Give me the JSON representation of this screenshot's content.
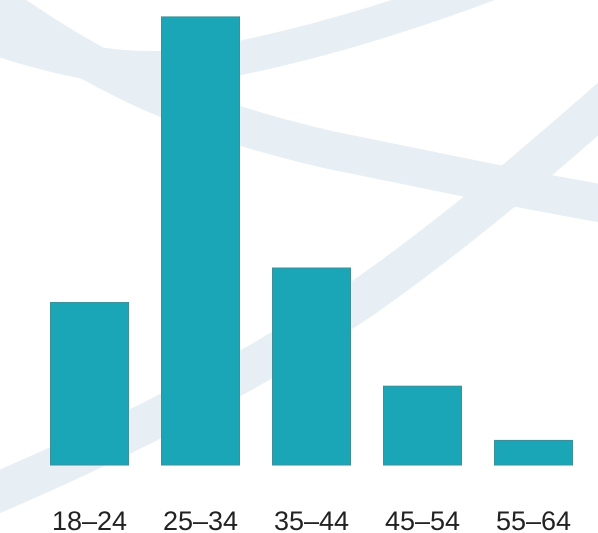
{
  "chart_data": {
    "type": "bar",
    "title": "",
    "xlabel": "",
    "ylabel": "",
    "categories": [
      "18–24",
      "25–34",
      "35–44",
      "45–54",
      "55–64"
    ],
    "values": [
      33,
      91,
      40,
      16,
      5
    ],
    "ylim": [
      0,
      92
    ],
    "grid": false,
    "legend": "none",
    "colors": {
      "bar": "#1ba6b8",
      "bar_edge": "#3d8f9a",
      "background_swoosh": "#e7eff4",
      "tick_label": "#222222"
    }
  }
}
